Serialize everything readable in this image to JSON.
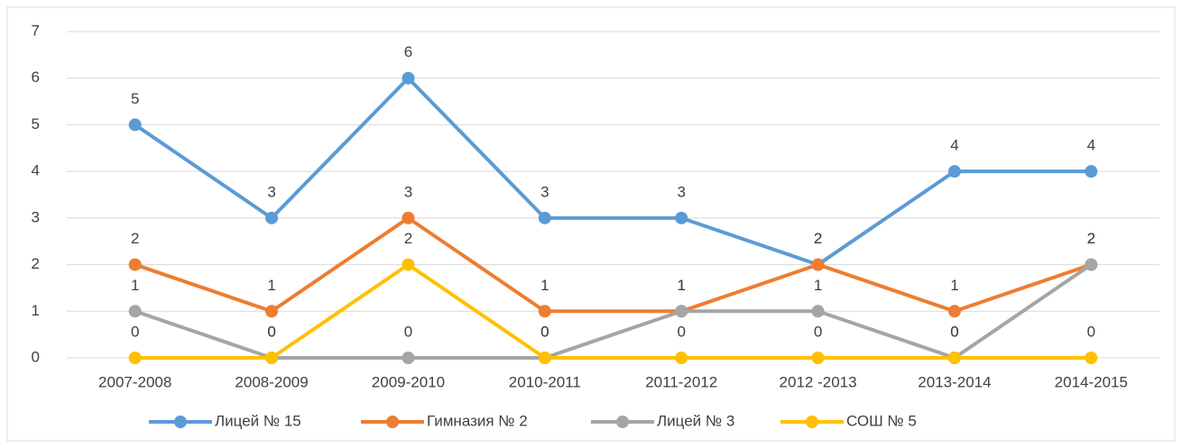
{
  "chart_data": {
    "type": "line",
    "categories": [
      "2007-2008",
      "2008-2009",
      "2009-2010",
      "2010-2011",
      "2011-2012",
      "2012 -2013",
      "2013-2014",
      "2014-2015"
    ],
    "series": [
      {
        "name": "Лицей № 15",
        "color": "#5b9bd5",
        "values": [
          5,
          3,
          6,
          3,
          3,
          2,
          4,
          4
        ]
      },
      {
        "name": "Гимназия № 2",
        "color": "#ed7d31",
        "values": [
          2,
          1,
          3,
          1,
          1,
          2,
          1,
          2
        ]
      },
      {
        "name": "Лицей № 3",
        "color": "#a5a5a5",
        "values": [
          1,
          0,
          0,
          0,
          1,
          1,
          0,
          2
        ]
      },
      {
        "name": "СОШ № 5",
        "color": "#ffc000",
        "values": [
          0,
          0,
          2,
          0,
          0,
          0,
          0,
          0
        ]
      }
    ],
    "ylim": [
      0,
      7
    ],
    "yticks": [
      0,
      1,
      2,
      3,
      4,
      5,
      6,
      7
    ],
    "grid": true,
    "legend": "bottom"
  }
}
